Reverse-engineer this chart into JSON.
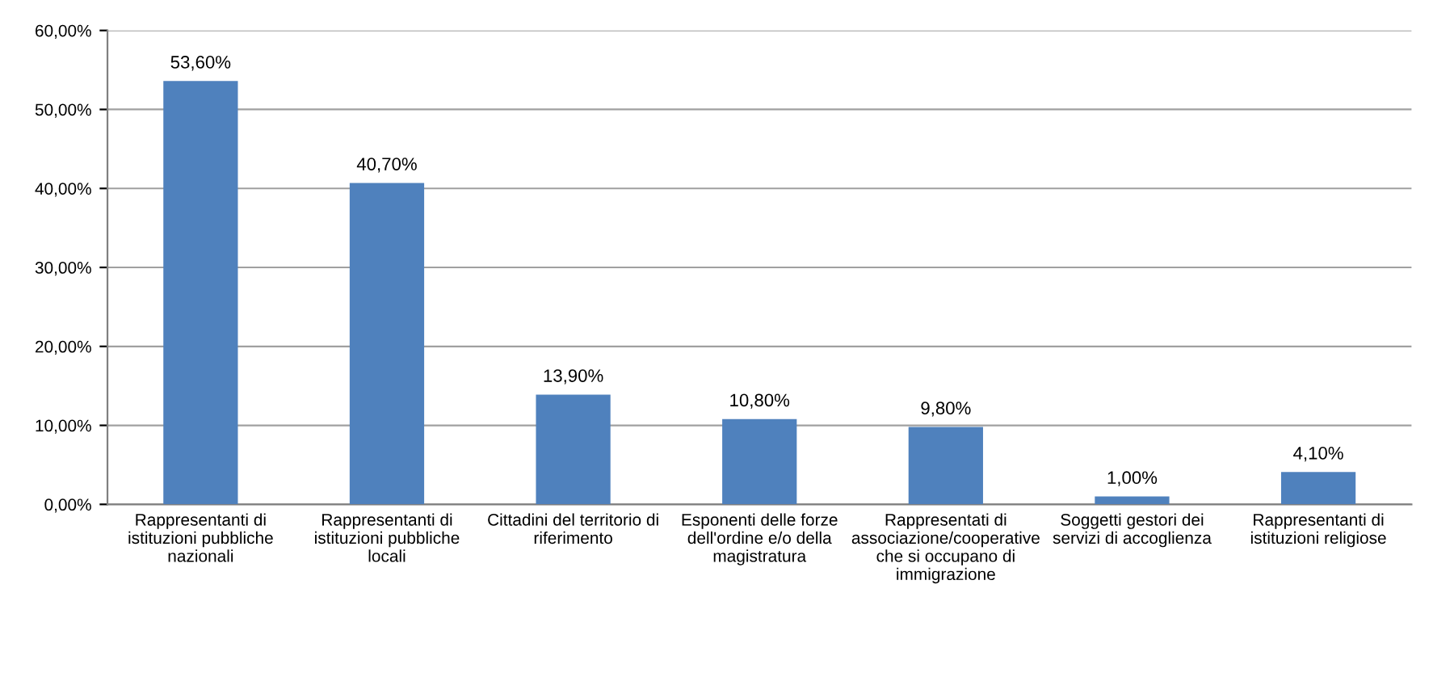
{
  "chart_data": {
    "type": "bar",
    "categories": [
      "Rappresentanti di\nistituzioni pubbliche\nnazionali",
      "Rappresentanti di\nistituzioni pubbliche\nlocali",
      "Cittadini del territorio di\nriferimento",
      "Esponenti delle forze\ndell'ordine e/o della\nmagistratura",
      "Rappresentati di\nassociazione/cooperative\nche si occupano di\nimmigrazione",
      "Soggetti gestori dei\nservizi di accoglienza",
      "Rappresentanti di\nistituzioni religiose"
    ],
    "values": [
      53.6,
      40.7,
      13.9,
      10.8,
      9.8,
      1.0,
      4.1
    ],
    "value_labels": [
      "53,60%",
      "40,70%",
      "13,90%",
      "10,80%",
      "9,80%",
      "1,00%",
      "4,10%"
    ],
    "color": "#4f81bd",
    "ylim": [
      0,
      60
    ],
    "yticks": [
      {
        "value": 0,
        "label": "0,00%"
      },
      {
        "value": 10,
        "label": "10,00%"
      },
      {
        "value": 20,
        "label": "20,00%"
      },
      {
        "value": 30,
        "label": "30,00%"
      },
      {
        "value": 40,
        "label": "40,00%"
      },
      {
        "value": 50,
        "label": "50,00%"
      },
      {
        "value": 60,
        "label": "60,00%"
      }
    ],
    "grid": "y",
    "legend": false
  }
}
